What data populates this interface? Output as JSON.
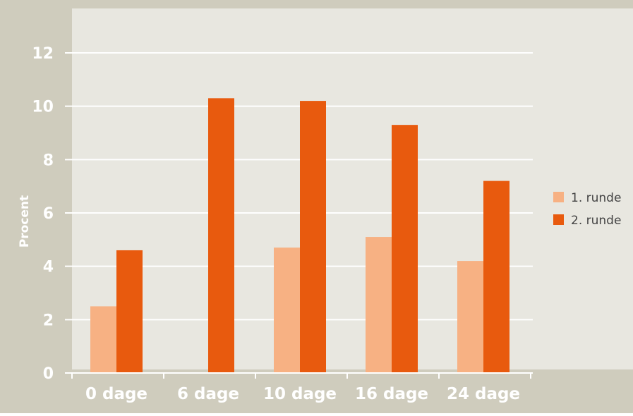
{
  "chart_data": {
    "type": "bar",
    "ylabel": "Procent",
    "ylim": [
      0,
      12
    ],
    "yticks": [
      "0",
      "2",
      "4",
      "6",
      "8",
      "10",
      "12"
    ],
    "categories": [
      "0 dage",
      "6 dage",
      "10 dage",
      "16 dage",
      "24 dage"
    ],
    "series": [
      {
        "name": "1. runde",
        "color": "#F7B183",
        "values": [
          2.5,
          0,
          4.7,
          5.1,
          4.2
        ]
      },
      {
        "name": "2. runde",
        "color": "#E85A0E",
        "values": [
          4.6,
          10.3,
          10.2,
          9.3,
          7.2
        ]
      }
    ],
    "grid": true,
    "legend": "right",
    "colors": {
      "plot_background": "#E8E7E0",
      "frame": "#CFCCBD",
      "grid": "#FFFFFF",
      "text": "#FFFFFF"
    }
  }
}
